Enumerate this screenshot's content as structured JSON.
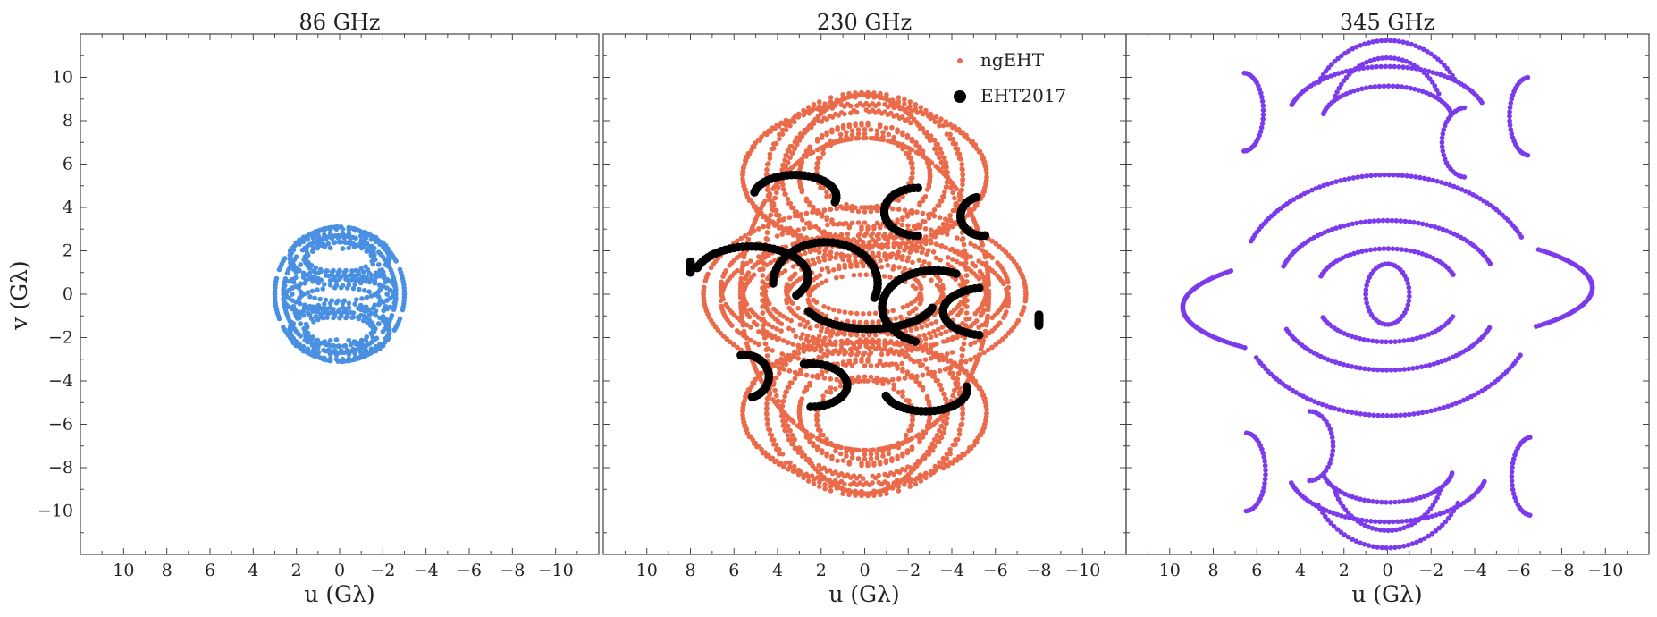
{
  "chart_data": [
    {
      "type": "scatter",
      "title": "86 GHz",
      "xlabel": "u (Gλ)",
      "ylabel": "v (Gλ)",
      "xlim": [
        12,
        -12
      ],
      "ylim": [
        -12,
        12
      ],
      "xticks": [
        10,
        8,
        6,
        4,
        2,
        0,
        -2,
        -4,
        -6,
        -8,
        -10
      ],
      "yticks": [
        10,
        8,
        6,
        4,
        2,
        0,
        -2,
        -4,
        -6,
        -8,
        -10
      ],
      "grid": false,
      "series": [
        {
          "color": "#4a90e2",
          "point_size": 4,
          "ellipses": [
            {
              "cu": 0,
              "cv": 1.8,
              "a": 2.3,
              "b": 1.2
            },
            {
              "cu": 0,
              "cv": 1.6,
              "a": 1.6,
              "b": 0.8
            },
            {
              "cu": 0,
              "cv": 0.2,
              "a": 2.6,
              "b": 0.9
            },
            {
              "cu": 0,
              "cv": 0.3,
              "a": 1.9,
              "b": 0.6
            },
            {
              "cu": 0,
              "cv": -1.6,
              "a": 2.3,
              "b": 1.2
            },
            {
              "cu": 0,
              "cv": -1.8,
              "a": 1.6,
              "b": 0.8
            },
            {
              "cu": 0,
              "cv": 0,
              "a": 3.0,
              "b": 3.1
            },
            {
              "cu": 0,
              "cv": 0,
              "a": 2.6,
              "b": 2.7
            },
            {
              "cu": 0,
              "cv": 0,
              "a": 2.2,
              "b": 2.4
            },
            {
              "cu": 0,
              "cv": 2.6,
              "a": 1.2,
              "b": 0.5
            },
            {
              "cu": 0,
              "cv": -2.6,
              "a": 1.2,
              "b": 0.5
            }
          ]
        }
      ]
    },
    {
      "type": "scatter",
      "title": "230 GHz",
      "xlabel": "u (Gλ)",
      "ylabel": "",
      "xlim": [
        12,
        -12
      ],
      "ylim": [
        -12,
        12
      ],
      "xticks": [
        10,
        8,
        6,
        4,
        2,
        0,
        -2,
        -4,
        -6,
        -8,
        -10
      ],
      "yticks": [
        10,
        8,
        6,
        4,
        2,
        0,
        -2,
        -4,
        -6,
        -8,
        -10
      ],
      "grid": false,
      "legend": {
        "location": "top-right",
        "entries": [
          "ngEHT",
          "EHT2017"
        ]
      },
      "series": [
        {
          "name": "ngEHT",
          "color": "#ea6a4a",
          "point_size": 4,
          "ellipses": [
            {
              "cu": 0,
              "cv": 5.5,
              "a": 4.5,
              "b": 3.8
            },
            {
              "cu": 0,
              "cv": 5.5,
              "a": 3.8,
              "b": 3.0
            },
            {
              "cu": 0,
              "cv": 5.5,
              "a": 3.0,
              "b": 2.4
            },
            {
              "cu": 0,
              "cv": 5.8,
              "a": 2.2,
              "b": 1.8
            },
            {
              "cu": 0,
              "cv": 5.5,
              "a": 5.6,
              "b": 3.3
            },
            {
              "cu": 0,
              "cv": 0.3,
              "a": 6.6,
              "b": 3.0
            },
            {
              "cu": 0,
              "cv": 0.2,
              "a": 5.6,
              "b": 2.6
            },
            {
              "cu": 0,
              "cv": 0.2,
              "a": 4.6,
              "b": 2.1
            },
            {
              "cu": 0,
              "cv": 0.2,
              "a": 3.6,
              "b": 1.6
            },
            {
              "cu": 0,
              "cv": 0.2,
              "a": 2.6,
              "b": 1.1
            },
            {
              "cu": 0,
              "cv": 0,
              "a": 7.4,
              "b": 4.0
            },
            {
              "cu": 0,
              "cv": -5.3,
              "a": 4.5,
              "b": 3.8
            },
            {
              "cu": 0,
              "cv": -5.4,
              "a": 3.8,
              "b": 3.0
            },
            {
              "cu": 0,
              "cv": -5.4,
              "a": 3.0,
              "b": 2.4
            },
            {
              "cu": 0,
              "cv": -5.6,
              "a": 2.2,
              "b": 1.8
            },
            {
              "cu": 0,
              "cv": -5.4,
              "a": 5.6,
              "b": 3.3
            },
            {
              "cu": 0,
              "cv": 0,
              "a": 4.7,
              "b": 9.2
            },
            {
              "cu": 0,
              "cv": 0,
              "a": 5.7,
              "b": 7.2
            }
          ]
        },
        {
          "name": "EHT2017",
          "color": "#000000",
          "point_size": 8,
          "arcs": [
            {
              "cu": 3.2,
              "cv": 4.5,
              "a": 1.9,
              "b": 1.0,
              "t0": 0.2,
              "t1": 3.4
            },
            {
              "cu": -2.4,
              "cv": 3.8,
              "a": 1.5,
              "b": 1.1,
              "t0": -1.6,
              "t1": 1.6
            },
            {
              "cu": -5.4,
              "cv": 3.6,
              "a": 1.0,
              "b": 0.9,
              "t0": -1.7,
              "t1": 1.3
            },
            {
              "cu": 5.2,
              "cv": 0.8,
              "a": 2.6,
              "b": 1.4,
              "t0": 0.3,
              "t1": 3.8
            },
            {
              "cu": 1.8,
              "cv": 0.5,
              "a": 2.4,
              "b": 1.9,
              "t0": 0.0,
              "t1": 3.5
            },
            {
              "cu": -3.2,
              "cv": -0.6,
              "a": 2.4,
              "b": 1.7,
              "t0": -1.2,
              "t1": 2.0
            },
            {
              "cu": -5.6,
              "cv": -0.8,
              "a": 2.0,
              "b": 1.1,
              "t0": -1.4,
              "t1": 1.4
            },
            {
              "cu": -0.2,
              "cv": -0.3,
              "a": 3.0,
              "b": 1.3,
              "t0": 3.4,
              "t1": 5.9
            },
            {
              "cu": 5.5,
              "cv": -3.8,
              "a": 1.1,
              "b": 1.0,
              "t0": 1.4,
              "t1": 4.4
            },
            {
              "cu": 2.5,
              "cv": -4.2,
              "a": 1.7,
              "b": 1.0,
              "t0": 1.4,
              "t1": 4.7
            },
            {
              "cu": -2.8,
              "cv": -4.4,
              "a": 1.9,
              "b": 1.0,
              "t0": 3.0,
              "t1": 6.0
            },
            {
              "cu": 8.0,
              "cv": 1.25,
              "a": 0.01,
              "b": 0.25,
              "t0": 0,
              "t1": 6.28
            },
            {
              "cu": -8.0,
              "cv": -1.2,
              "a": 0.01,
              "b": 0.25,
              "t0": 0,
              "t1": 6.28
            }
          ]
        }
      ]
    },
    {
      "type": "scatter",
      "title": "345 GHz",
      "xlabel": "u (Gλ)",
      "ylabel": "",
      "xlim": [
        12,
        -12
      ],
      "ylim": [
        -12,
        12
      ],
      "xticks": [
        10,
        8,
        6,
        4,
        2,
        0,
        -2,
        -4,
        -6,
        -8,
        -10
      ],
      "yticks": [
        10,
        8,
        6,
        4,
        2,
        0,
        -2,
        -4,
        -6,
        -8,
        -10
      ],
      "grid": false,
      "series": [
        {
          "color": "#7c3aed",
          "point_size": 4,
          "arcs": [
            {
              "cu": 0,
              "cv": 8.0,
              "a": 3.6,
              "b": 3.7,
              "t0": 0.5,
              "t1": 2.6
            },
            {
              "cu": 0,
              "cv": 8.0,
              "a": 2.6,
              "b": 2.9,
              "t0": 0.4,
              "t1": 2.7
            },
            {
              "cu": 0,
              "cv": 8.0,
              "a": 4.6,
              "b": 2.5,
              "t0": 0.3,
              "t1": 2.8
            },
            {
              "cu": 0,
              "cv": 8.0,
              "a": 3.0,
              "b": 1.6,
              "t0": 0.2,
              "t1": 2.9
            },
            {
              "cu": 6.6,
              "cv": 8.4,
              "a": 0.9,
              "b": 1.8,
              "t0": 1.6,
              "t1": 4.7
            },
            {
              "cu": -6.5,
              "cv": 8.2,
              "a": 0.9,
              "b": 1.8,
              "t0": -1.5,
              "t1": 1.5
            },
            {
              "cu": -3.6,
              "cv": 7.0,
              "a": 1.1,
              "b": 1.6,
              "t0": -1.5,
              "t1": 1.5
            },
            {
              "cu": 0,
              "cv": 0.5,
              "a": 6.8,
              "b": 5.0,
              "t0": 0.4,
              "t1": 2.7
            },
            {
              "cu": 0,
              "cv": 0.4,
              "a": 5.0,
              "b": 3.0,
              "t0": 0.3,
              "t1": 2.8
            },
            {
              "cu": 0,
              "cv": 0.3,
              "a": 3.2,
              "b": 1.8,
              "t0": 0.3,
              "t1": 2.8
            },
            {
              "cu": 0,
              "cv": -0.6,
              "a": 6.8,
              "b": 5.0,
              "t0": 3.6,
              "t1": 5.8
            },
            {
              "cu": 0,
              "cv": -0.5,
              "a": 5.0,
              "b": 3.0,
              "t0": 3.5,
              "t1": 5.9
            },
            {
              "cu": 0,
              "cv": -0.4,
              "a": 3.2,
              "b": 1.8,
              "t0": 3.5,
              "t1": 5.9
            },
            {
              "cu": 0,
              "cv": 0.3,
              "a": 9.4,
              "b": 2.6,
              "t0": 2.4,
              "t1": 3.9
            },
            {
              "cu": 0,
              "cv": -0.6,
              "a": 9.4,
              "b": 2.6,
              "t0": -0.8,
              "t1": 0.7
            },
            {
              "cu": 0,
              "cv": 0,
              "a": 1.0,
              "b": 1.4,
              "t0": 0,
              "t1": 6.28
            },
            {
              "cu": 0,
              "cv": -8.0,
              "a": 3.6,
              "b": 3.7,
              "t0": 3.6,
              "t1": 5.8
            },
            {
              "cu": 0,
              "cv": -8.0,
              "a": 2.6,
              "b": 2.9,
              "t0": 3.5,
              "t1": 5.9
            },
            {
              "cu": 0,
              "cv": -8.0,
              "a": 4.6,
              "b": 2.5,
              "t0": 3.4,
              "t1": 6.0
            },
            {
              "cu": 0,
              "cv": -8.0,
              "a": 3.0,
              "b": 1.6,
              "t0": 3.3,
              "t1": 6.1
            },
            {
              "cu": 3.6,
              "cv": -7.0,
              "a": 1.1,
              "b": 1.6,
              "t0": 1.6,
              "t1": 4.7
            },
            {
              "cu": -6.6,
              "cv": -8.4,
              "a": 0.9,
              "b": 1.8,
              "t0": -1.5,
              "t1": 1.5
            },
            {
              "cu": 6.5,
              "cv": -8.2,
              "a": 0.9,
              "b": 1.8,
              "t0": 1.6,
              "t1": 4.7
            }
          ]
        }
      ]
    }
  ]
}
